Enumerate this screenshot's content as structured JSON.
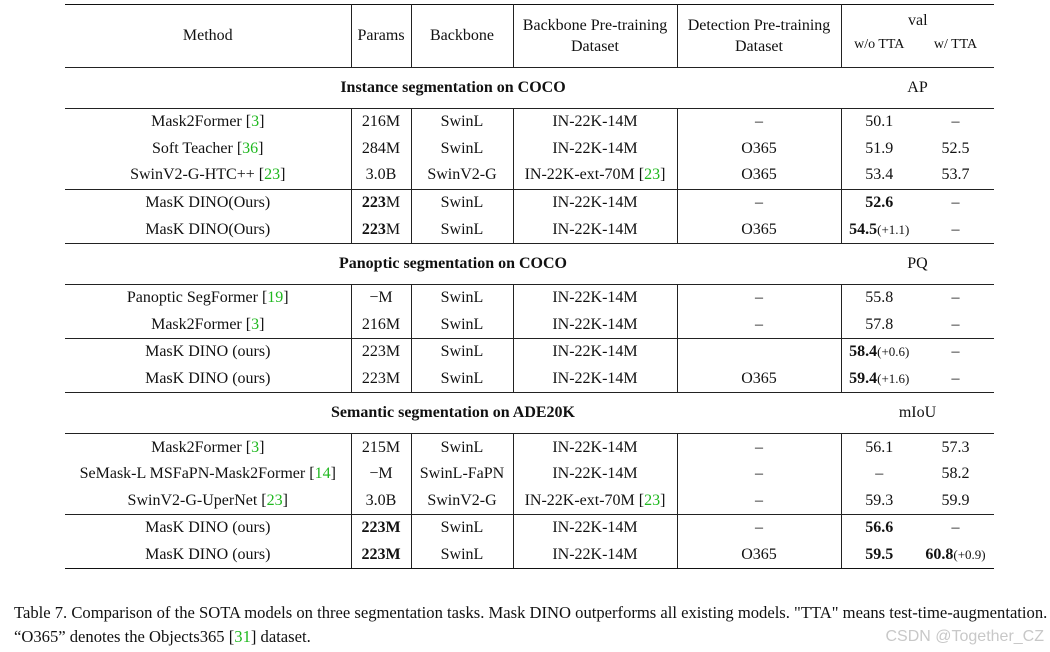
{
  "header": {
    "method": "Method",
    "params": "Params",
    "backbone": "Backbone",
    "bb_pretrain_1": "Backbone Pre-training",
    "bb_pretrain_2": "Dataset",
    "det_pretrain_1": "Detection Pre-training",
    "det_pretrain_2": "Dataset",
    "val": "val",
    "wo_tta": "w/o TTA",
    "w_tta": "w/ TTA"
  },
  "sections": [
    {
      "title": "Instance segmentation on COCO",
      "metric": "AP",
      "groups": [
        [
          {
            "method": "Mask2Former",
            "cite": "3",
            "params": "216M",
            "backbone": "SwinL",
            "bb_data": "IN-22K-14M",
            "bb_cite": "",
            "det_data": "–",
            "wo": "50.1",
            "wo_delta": "",
            "w": "–",
            "w_delta": ""
          },
          {
            "method": "Soft Teacher",
            "cite": "36",
            "params": "284M",
            "backbone": "SwinL",
            "bb_data": "IN-22K-14M",
            "bb_cite": "",
            "det_data": "O365",
            "wo": "51.9",
            "wo_delta": "",
            "w": "52.5",
            "w_delta": ""
          },
          {
            "method": "SwinV2-G-HTC++",
            "cite": "23",
            "params": "3.0B",
            "backbone": "SwinV2-G",
            "bb_data": "IN-22K-ext-70M",
            "bb_cite": "23",
            "det_data": "O365",
            "wo": "53.4",
            "wo_delta": "",
            "w": "53.7",
            "w_delta": ""
          }
        ],
        [
          {
            "method": "MasK DINO(Ours)",
            "cite": "",
            "params_b": "223",
            "params_rest": "M",
            "backbone": "SwinL",
            "bb_data": "IN-22K-14M",
            "bb_cite": "",
            "det_data": "–",
            "wo": "52.6",
            "wo_bold": true,
            "wo_delta": "",
            "w": "–",
            "w_delta": ""
          },
          {
            "method": "MasK DINO(Ours)",
            "cite": "",
            "params_b": "223",
            "params_rest": "M",
            "backbone": "SwinL",
            "bb_data": "IN-22K-14M",
            "bb_cite": "",
            "det_data": "O365",
            "wo": "54.5",
            "wo_bold": true,
            "wo_delta": "(+1.1)",
            "w": "–",
            "w_delta": ""
          }
        ]
      ]
    },
    {
      "title": "Panoptic segmentation on COCO",
      "metric": "PQ",
      "groups": [
        [
          {
            "method": "Panoptic SegFormer",
            "cite": "19",
            "params": "−M",
            "backbone": "SwinL",
            "bb_data": "IN-22K-14M",
            "bb_cite": "",
            "det_data": "–",
            "wo": "55.8",
            "wo_delta": "",
            "w": "–",
            "w_delta": ""
          },
          {
            "method": "Mask2Former",
            "cite": "3",
            "params": "216M",
            "backbone": "SwinL",
            "bb_data": "IN-22K-14M",
            "bb_cite": "",
            "det_data": "–",
            "wo": "57.8",
            "wo_delta": "",
            "w": "–",
            "w_delta": ""
          }
        ],
        [
          {
            "method": "MasK DINO (ours)",
            "cite": "",
            "params": "223M",
            "backbone": "SwinL",
            "bb_data": "IN-22K-14M",
            "bb_cite": "",
            "det_data": "",
            "wo": "58.4",
            "wo_bold": true,
            "wo_delta": "(+0.6)",
            "w": "–",
            "w_delta": ""
          },
          {
            "method": "MasK DINO (ours)",
            "cite": "",
            "params": "223M",
            "backbone": "SwinL",
            "bb_data": "IN-22K-14M",
            "bb_cite": "",
            "det_data": "O365",
            "wo": "59.4",
            "wo_bold": true,
            "wo_delta": "(+1.6)",
            "w": "–",
            "w_delta": ""
          }
        ]
      ]
    },
    {
      "title": "Semantic segmentation on ADE20K",
      "metric": "mIoU",
      "groups": [
        [
          {
            "method": "Mask2Former",
            "cite": "3",
            "params": "215M",
            "backbone": "SwinL",
            "bb_data": "IN-22K-14M",
            "bb_cite": "",
            "det_data": "–",
            "wo": "56.1",
            "wo_delta": "",
            "w": "57.3",
            "w_delta": ""
          },
          {
            "method": "SeMask-L MSFaPN-Mask2Former",
            "cite": "14",
            "params": "−M",
            "backbone": "SwinL-FaPN",
            "bb_data": "IN-22K-14M",
            "bb_cite": "",
            "det_data": "–",
            "wo": "–",
            "wo_delta": "",
            "w": "58.2",
            "w_delta": ""
          },
          {
            "method": "SwinV2-G-UperNet",
            "cite": "23",
            "params": "3.0B",
            "backbone": "SwinV2-G",
            "bb_data": "IN-22K-ext-70M",
            "bb_cite": "23",
            "det_data": "–",
            "wo": "59.3",
            "wo_delta": "",
            "w": "59.9",
            "w_delta": ""
          }
        ],
        [
          {
            "method": "MasK DINO (ours)",
            "cite": "",
            "params_b": "223M",
            "params_rest": "",
            "backbone": "SwinL",
            "bb_data": "IN-22K-14M",
            "bb_cite": "",
            "det_data": "–",
            "wo": "56.6",
            "wo_bold": true,
            "wo_delta": "",
            "w": "–",
            "w_delta": ""
          },
          {
            "method": "MasK DINO (ours)",
            "cite": "",
            "params_b": "223M",
            "params_rest": "",
            "backbone": "SwinL",
            "bb_data": "IN-22K-14M",
            "bb_cite": "",
            "det_data": "O365",
            "wo": "59.5",
            "wo_bold": true,
            "wo_delta": "",
            "w": "60.8",
            "w_bold": true,
            "w_delta": "(+0.9)"
          }
        ]
      ]
    }
  ],
  "caption": {
    "part1": "Table 7.  Comparison of the SOTA models on three segmentation tasks.  Mask DINO outperforms all existing models.  \"TTA\" means test-time-augmentation. “O365” denotes the Objects365 [",
    "cite": "31",
    "part2": "] dataset."
  },
  "watermark": "CSDN @Together_CZ"
}
